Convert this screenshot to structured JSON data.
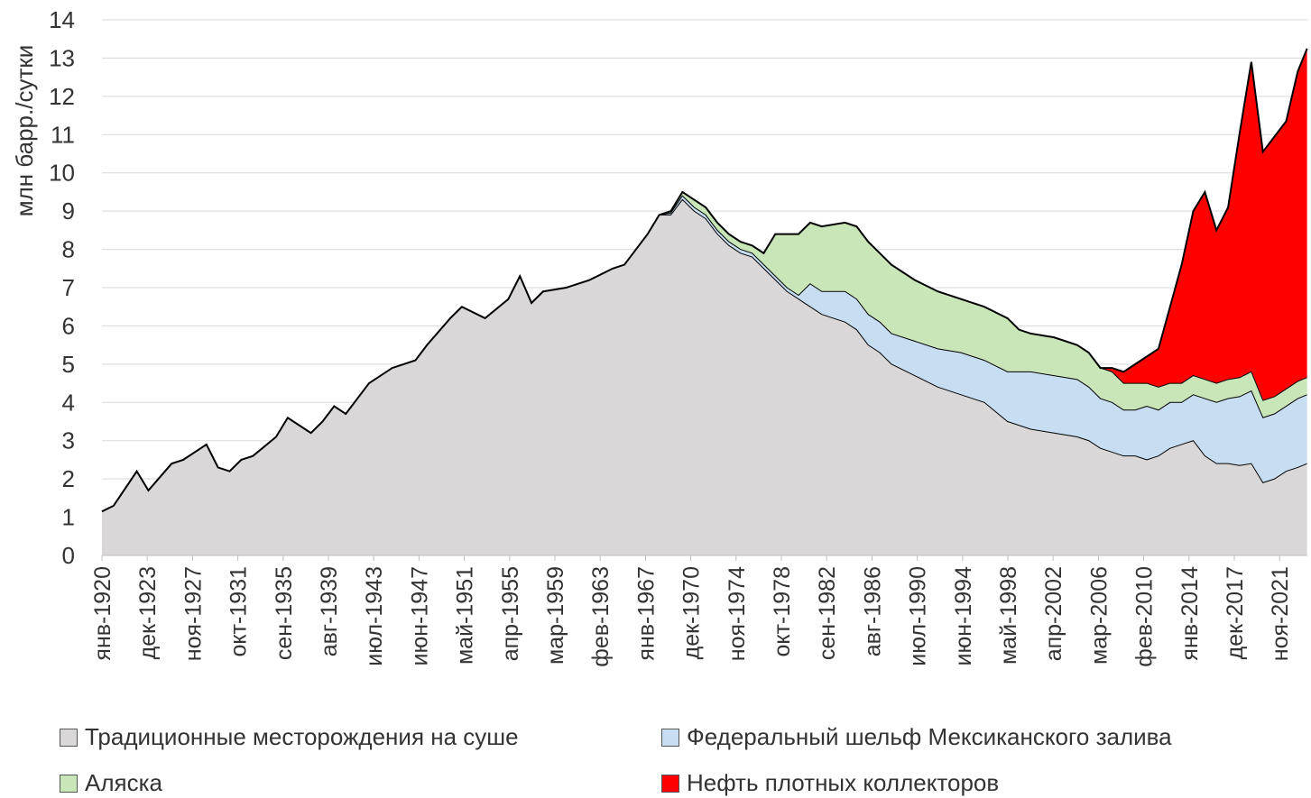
{
  "chart_data": {
    "type": "area",
    "stacked": true,
    "title": "",
    "xlabel": "",
    "ylabel": "млн барр./сутки",
    "ylim": [
      0,
      14
    ],
    "yticks": [
      0,
      1,
      2,
      3,
      4,
      5,
      6,
      7,
      8,
      9,
      10,
      11,
      12,
      13,
      14
    ],
    "grid": true,
    "legend_position": "bottom",
    "x_range": [
      1920.0,
      2023.83
    ],
    "x_tick_labels": [
      "янв-1920",
      "дек-1923",
      "ноя-1927",
      "окт-1931",
      "сен-1935",
      "авг-1939",
      "июл-1943",
      "июн-1947",
      "май-1951",
      "апр-1955",
      "мар-1959",
      "фев-1963",
      "янв-1967",
      "дек-1970",
      "ноя-1974",
      "окт-1978",
      "сен-1982",
      "авг-1986",
      "июл-1990",
      "июн-1994",
      "май-1998",
      "апр-2002",
      "мар-2006",
      "фев-2010",
      "янв-2014",
      "дек-2017",
      "ноя-2021"
    ],
    "x": [
      1920,
      1921,
      1923,
      1924,
      1926,
      1927,
      1929,
      1930,
      1931,
      1932,
      1933,
      1935,
      1936,
      1937,
      1938,
      1939,
      1940,
      1941,
      1943,
      1945,
      1947,
      1948,
      1950,
      1951,
      1953,
      1955,
      1956,
      1957,
      1958,
      1960,
      1962,
      1964,
      1965,
      1966,
      1967,
      1968,
      1969,
      1970,
      1971,
      1972,
      1973,
      1974,
      1975,
      1976,
      1977,
      1978,
      1979,
      1980,
      1981,
      1982,
      1984,
      1985,
      1986,
      1987,
      1988,
      1990,
      1992,
      1994,
      1996,
      1998,
      1999,
      2000,
      2002,
      2004,
      2005,
      2006,
      2007,
      2008,
      2009,
      2010,
      2011,
      2012,
      2013,
      2014,
      2015,
      2016,
      2017,
      2018,
      2019,
      2020,
      2021,
      2022,
      2023,
      2023.8
    ],
    "series": [
      {
        "name": "Традиционные месторождения на суше",
        "color": "#d9d7d7",
        "values": [
          1.15,
          1.3,
          2.2,
          1.7,
          2.4,
          2.5,
          2.9,
          2.3,
          2.2,
          2.5,
          2.6,
          3.1,
          3.6,
          3.4,
          3.2,
          3.5,
          3.9,
          3.7,
          4.5,
          4.9,
          5.1,
          5.5,
          6.2,
          6.5,
          6.2,
          6.7,
          7.3,
          6.6,
          6.9,
          7.0,
          7.2,
          7.5,
          7.6,
          8.0,
          8.4,
          8.9,
          8.9,
          9.3,
          9.0,
          8.8,
          8.4,
          8.1,
          7.9,
          7.8,
          7.5,
          7.2,
          6.9,
          6.7,
          6.5,
          6.3,
          6.1,
          5.9,
          5.5,
          5.3,
          5.0,
          4.7,
          4.4,
          4.2,
          4.0,
          3.5,
          3.4,
          3.3,
          3.2,
          3.1,
          3.0,
          2.8,
          2.7,
          2.6,
          2.6,
          2.5,
          2.6,
          2.8,
          2.9,
          3.0,
          2.6,
          2.4,
          2.4,
          2.35,
          2.4,
          1.9,
          2.0,
          2.2,
          2.3,
          2.4
        ]
      },
      {
        "name": "Федеральный шельф Мексиканского залива",
        "color": "#c6ddf2",
        "values": [
          0,
          0,
          0,
          0,
          0,
          0,
          0,
          0,
          0,
          0,
          0,
          0,
          0,
          0,
          0,
          0,
          0,
          0,
          0,
          0,
          0,
          0,
          0,
          0,
          0,
          0,
          0,
          0,
          0,
          0,
          0,
          0,
          0,
          0,
          0,
          0,
          0.05,
          0.1,
          0.1,
          0.1,
          0.1,
          0.1,
          0.1,
          0.1,
          0.1,
          0.1,
          0.1,
          0.1,
          0.6,
          0.6,
          0.8,
          0.8,
          0.8,
          0.8,
          0.8,
          0.9,
          1.0,
          1.1,
          1.1,
          1.3,
          1.4,
          1.5,
          1.5,
          1.5,
          1.4,
          1.3,
          1.3,
          1.2,
          1.2,
          1.4,
          1.2,
          1.2,
          1.1,
          1.2,
          1.5,
          1.6,
          1.7,
          1.8,
          1.9,
          1.7,
          1.7,
          1.7,
          1.8,
          1.8
        ]
      },
      {
        "name": "Аляска",
        "color": "#c8e6b8",
        "values": [
          0,
          0,
          0,
          0,
          0,
          0,
          0,
          0,
          0,
          0,
          0,
          0,
          0,
          0,
          0,
          0,
          0,
          0,
          0,
          0,
          0,
          0,
          0,
          0,
          0,
          0,
          0,
          0,
          0,
          0,
          0,
          0,
          0,
          0,
          0,
          0,
          0.05,
          0.1,
          0.2,
          0.2,
          0.2,
          0.2,
          0.2,
          0.2,
          0.3,
          1.1,
          1.4,
          1.6,
          1.6,
          1.7,
          1.8,
          1.9,
          1.9,
          1.8,
          1.8,
          1.6,
          1.5,
          1.4,
          1.4,
          1.4,
          1.1,
          1.0,
          1.0,
          0.9,
          0.9,
          0.8,
          0.8,
          0.7,
          0.7,
          0.6,
          0.6,
          0.5,
          0.5,
          0.5,
          0.5,
          0.5,
          0.5,
          0.5,
          0.5,
          0.45,
          0.45,
          0.45,
          0.45,
          0.45
        ]
      },
      {
        "name": "Нефть плотных коллекторов",
        "color": "#ff0000",
        "values": [
          0,
          0,
          0,
          0,
          0,
          0,
          0,
          0,
          0,
          0,
          0,
          0,
          0,
          0,
          0,
          0,
          0,
          0,
          0,
          0,
          0,
          0,
          0,
          0,
          0,
          0,
          0,
          0,
          0,
          0,
          0,
          0,
          0,
          0,
          0,
          0,
          0,
          0,
          0,
          0,
          0,
          0,
          0,
          0,
          0,
          0,
          0,
          0,
          0,
          0,
          0,
          0,
          0,
          0,
          0,
          0,
          0,
          0,
          0,
          0,
          0,
          0,
          0,
          0,
          0,
          0,
          0.1,
          0.3,
          0.5,
          0.7,
          1.0,
          2.0,
          3.1,
          4.3,
          4.9,
          4.0,
          4.5,
          6.4,
          8.1,
          6.5,
          6.8,
          7.0,
          8.1,
          8.6
        ]
      }
    ]
  }
}
